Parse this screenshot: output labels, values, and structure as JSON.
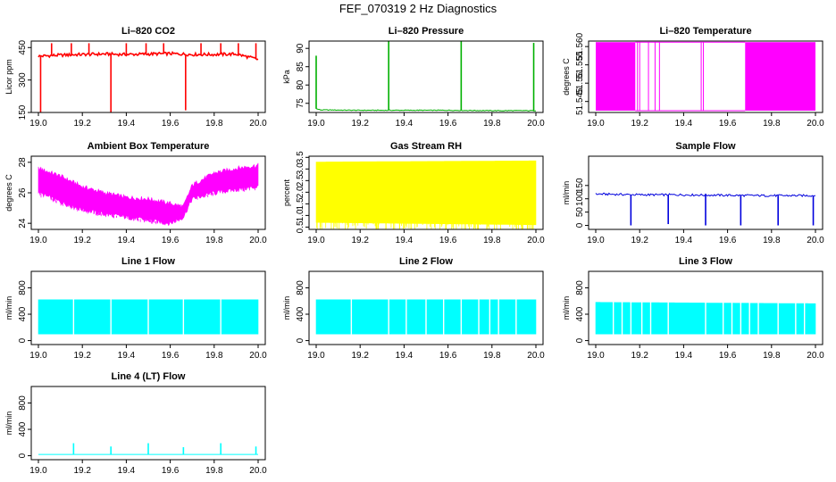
{
  "figure": {
    "title": "FEF_070319  2 Hz Diagnostics"
  },
  "chart_data": [
    {
      "id": "co2",
      "type": "line",
      "title": "Li–820 CO2",
      "ylabel": "Licor ppm",
      "color": "#ff0000",
      "xlim": [
        19.0,
        20.0
      ],
      "ylim": [
        150,
        480
      ],
      "xticks": [
        "19.0",
        "19.2",
        "19.4",
        "19.6",
        "19.8",
        "20.0"
      ],
      "yticks": [
        {
          "v": 150,
          "t": "150"
        },
        {
          "v": 300,
          "t": "300"
        },
        {
          "v": 450,
          "t": "450"
        }
      ],
      "series": [
        {
          "values": [
            [
              19.0,
              410
            ],
            [
              19.1,
              415
            ],
            [
              19.2,
              418
            ],
            [
              19.3,
              420
            ],
            [
              19.4,
              418
            ],
            [
              19.5,
              420
            ],
            [
              19.6,
              422
            ],
            [
              19.7,
              418
            ],
            [
              19.8,
              418
            ],
            [
              19.9,
              420
            ],
            [
              20.0,
              395
            ]
          ]
        }
      ],
      "spikes": [
        {
          "x": 19.01,
          "to": 150
        },
        {
          "x": 19.06,
          "to": 470
        },
        {
          "x": 19.15,
          "to": 470
        },
        {
          "x": 19.23,
          "to": 470
        },
        {
          "x": 19.33,
          "to": 150
        },
        {
          "x": 19.4,
          "to": 470
        },
        {
          "x": 19.49,
          "to": 470
        },
        {
          "x": 19.57,
          "to": 470
        },
        {
          "x": 19.67,
          "to": 160
        },
        {
          "x": 19.74,
          "to": 470
        },
        {
          "x": 19.83,
          "to": 470
        },
        {
          "x": 19.91,
          "to": 470
        },
        {
          "x": 19.99,
          "to": 470
        }
      ]
    },
    {
      "id": "pressure",
      "type": "line",
      "title": "Li–820 Pressure",
      "ylabel": "kPa",
      "color": "#00b000",
      "xlim": [
        19.0,
        20.0
      ],
      "ylim": [
        72.5,
        92
      ],
      "xticks": [
        "19.0",
        "19.2",
        "19.4",
        "19.6",
        "19.8",
        "20.0"
      ],
      "yticks": [
        {
          "v": 75,
          "t": "75"
        },
        {
          "v": 80,
          "t": "80"
        },
        {
          "v": 85,
          "t": "85"
        },
        {
          "v": 90,
          "t": "90"
        }
      ],
      "series": [
        {
          "values": [
            [
              19.0,
              73.5
            ],
            [
              19.02,
              73.2
            ],
            [
              19.2,
              73.1
            ],
            [
              19.4,
              73.1
            ],
            [
              19.6,
              73.1
            ],
            [
              19.8,
              73.0
            ],
            [
              20.0,
              73.0
            ]
          ]
        }
      ],
      "spikes": [
        {
          "x": 19.0,
          "to": 88
        },
        {
          "x": 19.33,
          "to": 92
        },
        {
          "x": 19.66,
          "to": 92
        },
        {
          "x": 19.99,
          "to": 91.5
        }
      ]
    },
    {
      "id": "temperature",
      "type": "band",
      "title": "Li–820 Temperature",
      "ylabel": "degrees C",
      "color": "#ff00ff",
      "xlim": [
        19.0,
        20.0
      ],
      "ylim": [
        51.542,
        51.5615
      ],
      "xticks": [
        "19.0",
        "19.2",
        "19.4",
        "19.6",
        "19.8",
        "20.0"
      ],
      "yticks": [
        {
          "v": 51.545,
          "t": "51.545"
        },
        {
          "v": 51.55,
          "t": "51.55"
        },
        {
          "v": 51.555,
          "t": "51.555"
        },
        {
          "v": 51.56,
          "t": "51.560"
        }
      ],
      "bands": [
        [
          19.0,
          19.18
        ],
        [
          19.68,
          20.0
        ]
      ],
      "lines": [
        19.19,
        19.2,
        19.24,
        19.27,
        19.29,
        19.48,
        19.49
      ],
      "low": 51.5425,
      "high": 51.5612
    },
    {
      "id": "box_temp",
      "type": "area",
      "title": "Ambient Box Temperature",
      "ylabel": "degrees C",
      "color": "#ff00ff",
      "xlim": [
        19.0,
        20.0
      ],
      "ylim": [
        23.6,
        28.4
      ],
      "xticks": [
        "19.0",
        "19.2",
        "19.4",
        "19.6",
        "19.8",
        "20.0"
      ],
      "yticks": [
        {
          "v": 24,
          "t": "24"
        },
        {
          "v": 26,
          "t": "26"
        },
        {
          "v": 28,
          "t": "28"
        }
      ],
      "series": [
        {
          "name": "upper",
          "values": [
            [
              19.0,
              27.6
            ],
            [
              19.1,
              27.1
            ],
            [
              19.2,
              26.4
            ],
            [
              19.3,
              26.0
            ],
            [
              19.4,
              25.7
            ],
            [
              19.5,
              25.6
            ],
            [
              19.6,
              25.3
            ],
            [
              19.66,
              25.1
            ],
            [
              19.7,
              26.5
            ],
            [
              19.8,
              27.3
            ],
            [
              19.9,
              27.6
            ],
            [
              20.0,
              27.8
            ]
          ]
        },
        {
          "name": "lower",
          "values": [
            [
              19.0,
              26.0
            ],
            [
              19.1,
              25.4
            ],
            [
              19.2,
              24.9
            ],
            [
              19.3,
              24.6
            ],
            [
              19.4,
              24.4
            ],
            [
              19.5,
              24.2
            ],
            [
              19.6,
              24.0
            ],
            [
              19.66,
              24.4
            ],
            [
              19.7,
              25.6
            ],
            [
              19.8,
              26.0
            ],
            [
              19.9,
              26.2
            ],
            [
              20.0,
              26.4
            ]
          ]
        }
      ]
    },
    {
      "id": "rh",
      "type": "area",
      "title": "Gas Stream RH",
      "ylabel": "percent",
      "color": "#ffff00",
      "xlim": [
        19.0,
        20.0
      ],
      "ylim": [
        0.4,
        3.55
      ],
      "xticks": [
        "19.0",
        "19.2",
        "19.4",
        "19.6",
        "19.8",
        "20.0"
      ],
      "yticks": [
        {
          "v": 0.5,
          "t": "0.5"
        },
        {
          "v": 1.0,
          "t": "1.0"
        },
        {
          "v": 1.5,
          "t": "1.5"
        },
        {
          "v": 2.0,
          "t": "2.0"
        },
        {
          "v": 2.5,
          "t": "2.5"
        },
        {
          "v": 3.0,
          "t": "3.0"
        },
        {
          "v": 3.5,
          "t": "3.5"
        }
      ],
      "series": [
        {
          "name": "upper",
          "values": [
            [
              19.0,
              3.3
            ],
            [
              20.0,
              3.35
            ]
          ]
        },
        {
          "name": "lower",
          "values": [
            [
              19.0,
              0.7
            ],
            [
              20.0,
              0.6
            ]
          ]
        }
      ]
    },
    {
      "id": "sample_flow",
      "type": "line",
      "title": "Sample Flow",
      "ylabel": "ml/min",
      "color": "#0000dd",
      "xlim": [
        19.0,
        20.0
      ],
      "ylim": [
        -15,
        260
      ],
      "xticks": [
        "19.0",
        "19.2",
        "19.4",
        "19.6",
        "19.8",
        "20.0"
      ],
      "yticks": [
        {
          "v": 0,
          "t": "0"
        },
        {
          "v": 50,
          "t": "50"
        },
        {
          "v": 100,
          "t": "100"
        },
        {
          "v": 150,
          "t": "150"
        }
      ],
      "series": [
        {
          "values": [
            [
              19.0,
              118
            ],
            [
              19.2,
              115
            ],
            [
              19.4,
              115
            ],
            [
              19.6,
              113
            ],
            [
              19.8,
              112
            ],
            [
              20.0,
              112
            ]
          ]
        }
      ],
      "spikes": [
        {
          "x": 19.16,
          "to": 0
        },
        {
          "x": 19.33,
          "to": 5
        },
        {
          "x": 19.5,
          "to": 0
        },
        {
          "x": 19.66,
          "to": 0
        },
        {
          "x": 19.83,
          "to": 0
        },
        {
          "x": 19.99,
          "to": 0
        }
      ]
    },
    {
      "id": "line1",
      "type": "area",
      "title": "Line 1 Flow",
      "ylabel": "ml/min",
      "color": "#00ffff",
      "xlim": [
        19.0,
        20.0
      ],
      "ylim": [
        -60,
        1050
      ],
      "xticks": [
        "19.0",
        "19.2",
        "19.4",
        "19.6",
        "19.8",
        "20.0"
      ],
      "yticks": [
        {
          "v": 0,
          "t": "0"
        },
        {
          "v": 400,
          "t": "400"
        },
        {
          "v": 800,
          "t": "800"
        }
      ],
      "series": [
        {
          "name": "upper",
          "values": [
            [
              19.0,
              620
            ],
            [
              20.0,
              620
            ]
          ]
        },
        {
          "name": "lower",
          "values": [
            [
              19.0,
              100
            ],
            [
              20.0,
              100
            ]
          ]
        }
      ],
      "gaps": [
        19.16,
        19.33,
        19.5,
        19.66,
        19.83
      ]
    },
    {
      "id": "line2",
      "type": "area",
      "title": "Line 2 Flow",
      "ylabel": "ml/min",
      "color": "#00ffff",
      "xlim": [
        19.0,
        20.0
      ],
      "ylim": [
        -60,
        1050
      ],
      "xticks": [
        "19.0",
        "19.2",
        "19.4",
        "19.6",
        "19.8",
        "20.0"
      ],
      "yticks": [
        {
          "v": 0,
          "t": "0"
        },
        {
          "v": 400,
          "t": "400"
        },
        {
          "v": 800,
          "t": "800"
        }
      ],
      "series": [
        {
          "name": "upper",
          "values": [
            [
              19.0,
              620
            ],
            [
              20.0,
              620
            ]
          ]
        },
        {
          "name": "lower",
          "values": [
            [
              19.0,
              100
            ],
            [
              20.0,
              100
            ]
          ]
        }
      ],
      "gaps": [
        19.16,
        19.33,
        19.41,
        19.5,
        19.58,
        19.66,
        19.74,
        19.79,
        19.83,
        19.91
      ]
    },
    {
      "id": "line3",
      "type": "area",
      "title": "Line 3 Flow",
      "ylabel": "ml/min",
      "color": "#00ffff",
      "xlim": [
        19.0,
        20.0
      ],
      "ylim": [
        -60,
        1050
      ],
      "xticks": [
        "19.0",
        "19.2",
        "19.4",
        "19.6",
        "19.8",
        "20.0"
      ],
      "yticks": [
        {
          "v": 0,
          "t": "0"
        },
        {
          "v": 400,
          "t": "400"
        },
        {
          "v": 800,
          "t": "800"
        }
      ],
      "series": [
        {
          "name": "upper",
          "values": [
            [
              19.0,
              580
            ],
            [
              20.0,
              560
            ]
          ]
        },
        {
          "name": "lower",
          "values": [
            [
              19.0,
              100
            ],
            [
              20.0,
              100
            ]
          ]
        }
      ],
      "gaps": [
        19.08,
        19.12,
        19.16,
        19.21,
        19.25,
        19.33,
        19.5,
        19.58,
        19.62,
        19.66,
        19.7,
        19.74,
        19.83,
        19.91,
        19.95
      ]
    },
    {
      "id": "line4",
      "type": "line",
      "title": "Line 4 (LT) Flow",
      "ylabel": "ml/min",
      "color": "#00ffff",
      "xlim": [
        19.0,
        20.0
      ],
      "ylim": [
        -60,
        1050
      ],
      "xticks": [
        "19.0",
        "19.2",
        "19.4",
        "19.6",
        "19.8",
        "20.0"
      ],
      "yticks": [
        {
          "v": 0,
          "t": "0"
        },
        {
          "v": 400,
          "t": "400"
        },
        {
          "v": 800,
          "t": "800"
        }
      ],
      "series": [
        {
          "values": [
            [
              19.0,
              20
            ],
            [
              20.0,
              20
            ]
          ]
        }
      ],
      "spikes": [
        {
          "x": 19.16,
          "to": 190
        },
        {
          "x": 19.33,
          "to": 140
        },
        {
          "x": 19.5,
          "to": 190
        },
        {
          "x": 19.66,
          "to": 130
        },
        {
          "x": 19.83,
          "to": 190
        },
        {
          "x": 19.99,
          "to": 140
        }
      ]
    }
  ]
}
